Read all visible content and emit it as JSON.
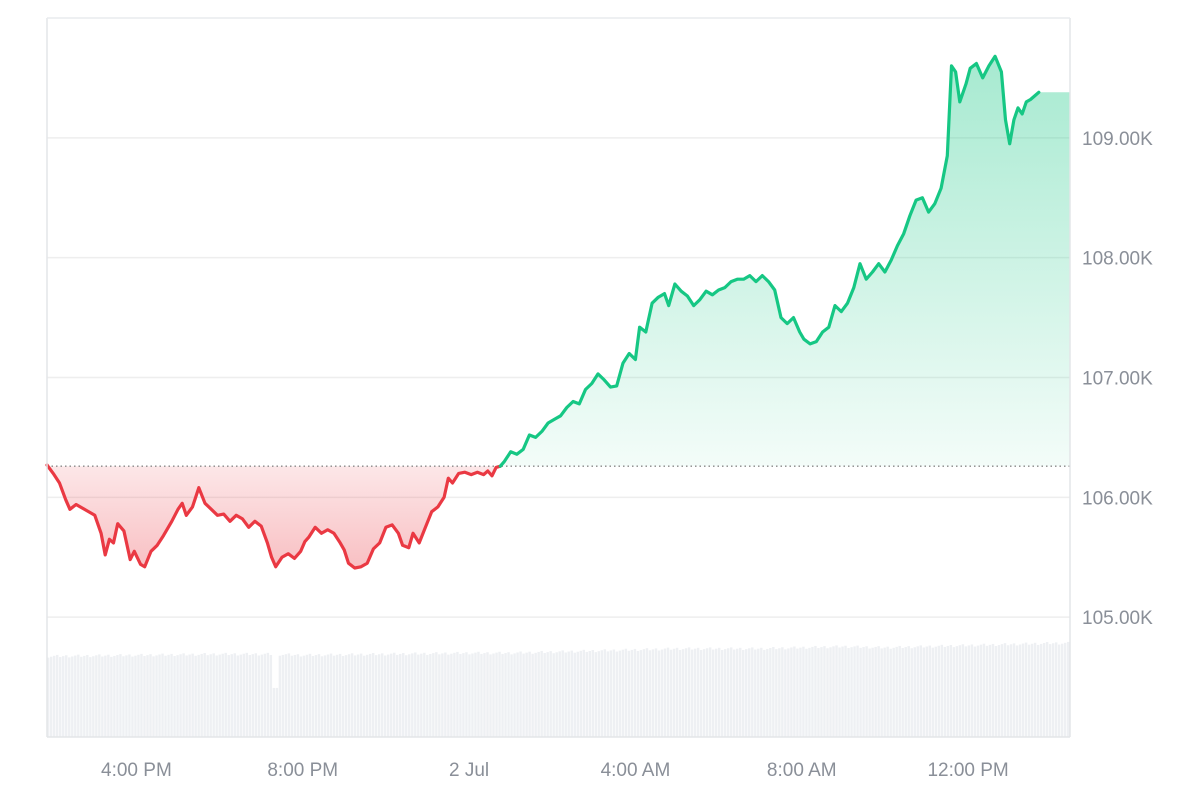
{
  "chart_data": {
    "type": "area",
    "title": "",
    "xlabel": "",
    "ylabel": "",
    "baseline": 106.26,
    "ylim": [
      104.0,
      110.0
    ],
    "y_ticks": [
      {
        "value": 105.0,
        "label": "105.00K"
      },
      {
        "value": 106.0,
        "label": "106.00K"
      },
      {
        "value": 107.0,
        "label": "107.00K"
      },
      {
        "value": 108.0,
        "label": "108.00K"
      },
      {
        "value": 109.0,
        "label": "109.00K"
      }
    ],
    "x_ticks": [
      {
        "hour": 16,
        "label": "4:00 PM"
      },
      {
        "hour": 20,
        "label": "8:00 PM"
      },
      {
        "hour": 24,
        "label": "2 Jul"
      },
      {
        "hour": 28,
        "label": "4:00 AM"
      },
      {
        "hour": 32,
        "label": "8:00 AM"
      },
      {
        "hour": 36,
        "label": "12:00 PM"
      }
    ],
    "xlim_hours": [
      13.85,
      38.45
    ],
    "grid": "horizontal",
    "colors": {
      "up_line": "#16c784",
      "down_line": "#ea3943",
      "up_fill": "#16c784",
      "down_fill": "#ea3943",
      "volume": "#eef0f3",
      "grid": "#eeeeee",
      "baseline": "#888888"
    },
    "series": [
      {
        "values": [
          [
            13.85,
            106.27
          ],
          [
            14.0,
            106.2
          ],
          [
            14.15,
            106.12
          ],
          [
            14.3,
            105.98
          ],
          [
            14.4,
            105.9
          ],
          [
            14.55,
            105.94
          ],
          [
            14.75,
            105.9
          ],
          [
            15.0,
            105.85
          ],
          [
            15.15,
            105.7
          ],
          [
            15.25,
            105.52
          ],
          [
            15.35,
            105.65
          ],
          [
            15.45,
            105.62
          ],
          [
            15.55,
            105.78
          ],
          [
            15.7,
            105.72
          ],
          [
            15.85,
            105.48
          ],
          [
            15.95,
            105.55
          ],
          [
            16.1,
            105.44
          ],
          [
            16.2,
            105.42
          ],
          [
            16.35,
            105.55
          ],
          [
            16.5,
            105.6
          ],
          [
            16.65,
            105.68
          ],
          [
            16.85,
            105.8
          ],
          [
            17.0,
            105.9
          ],
          [
            17.1,
            105.95
          ],
          [
            17.2,
            105.85
          ],
          [
            17.35,
            105.92
          ],
          [
            17.5,
            106.08
          ],
          [
            17.65,
            105.95
          ],
          [
            17.8,
            105.9
          ],
          [
            17.95,
            105.85
          ],
          [
            18.1,
            105.86
          ],
          [
            18.25,
            105.8
          ],
          [
            18.4,
            105.85
          ],
          [
            18.55,
            105.82
          ],
          [
            18.7,
            105.75
          ],
          [
            18.85,
            105.8
          ],
          [
            19.0,
            105.76
          ],
          [
            19.15,
            105.62
          ],
          [
            19.25,
            105.5
          ],
          [
            19.35,
            105.42
          ],
          [
            19.5,
            105.5
          ],
          [
            19.65,
            105.53
          ],
          [
            19.8,
            105.49
          ],
          [
            19.95,
            105.55
          ],
          [
            20.05,
            105.63
          ],
          [
            20.15,
            105.67
          ],
          [
            20.3,
            105.75
          ],
          [
            20.45,
            105.7
          ],
          [
            20.6,
            105.73
          ],
          [
            20.75,
            105.7
          ],
          [
            20.9,
            105.62
          ],
          [
            21.0,
            105.56
          ],
          [
            21.1,
            105.45
          ],
          [
            21.25,
            105.41
          ],
          [
            21.4,
            105.42
          ],
          [
            21.55,
            105.45
          ],
          [
            21.7,
            105.57
          ],
          [
            21.85,
            105.62
          ],
          [
            22.0,
            105.75
          ],
          [
            22.15,
            105.77
          ],
          [
            22.3,
            105.7
          ],
          [
            22.4,
            105.6
          ],
          [
            22.55,
            105.58
          ],
          [
            22.65,
            105.7
          ],
          [
            22.8,
            105.62
          ],
          [
            22.95,
            105.75
          ],
          [
            23.1,
            105.88
          ],
          [
            23.25,
            105.92
          ],
          [
            23.4,
            106.0
          ],
          [
            23.5,
            106.16
          ],
          [
            23.6,
            106.12
          ],
          [
            23.75,
            106.2
          ],
          [
            23.9,
            106.21
          ],
          [
            24.05,
            106.19
          ],
          [
            24.2,
            106.21
          ],
          [
            24.35,
            106.19
          ],
          [
            24.45,
            106.22
          ],
          [
            24.55,
            106.18
          ],
          [
            24.65,
            106.25
          ],
          [
            24.75,
            106.26
          ]
        ]
      },
      {
        "values": [
          [
            24.75,
            106.26
          ],
          [
            24.85,
            106.3
          ],
          [
            25.0,
            106.38
          ],
          [
            25.15,
            106.36
          ],
          [
            25.3,
            106.4
          ],
          [
            25.45,
            106.52
          ],
          [
            25.6,
            106.5
          ],
          [
            25.75,
            106.55
          ],
          [
            25.9,
            106.62
          ],
          [
            26.05,
            106.65
          ],
          [
            26.2,
            106.68
          ],
          [
            26.35,
            106.75
          ],
          [
            26.5,
            106.8
          ],
          [
            26.65,
            106.78
          ],
          [
            26.8,
            106.9
          ],
          [
            26.95,
            106.95
          ],
          [
            27.1,
            107.03
          ],
          [
            27.25,
            106.98
          ],
          [
            27.4,
            106.92
          ],
          [
            27.55,
            106.93
          ],
          [
            27.7,
            107.12
          ],
          [
            27.85,
            107.2
          ],
          [
            28.0,
            107.15
          ],
          [
            28.1,
            107.42
          ],
          [
            28.25,
            107.38
          ],
          [
            28.4,
            107.62
          ],
          [
            28.55,
            107.67
          ],
          [
            28.7,
            107.7
          ],
          [
            28.8,
            107.6
          ],
          [
            28.95,
            107.78
          ],
          [
            29.1,
            107.72
          ],
          [
            29.25,
            107.68
          ],
          [
            29.4,
            107.6
          ],
          [
            29.55,
            107.65
          ],
          [
            29.7,
            107.72
          ],
          [
            29.85,
            107.69
          ],
          [
            30.0,
            107.73
          ],
          [
            30.15,
            107.75
          ],
          [
            30.3,
            107.8
          ],
          [
            30.45,
            107.82
          ],
          [
            30.6,
            107.82
          ],
          [
            30.75,
            107.85
          ],
          [
            30.9,
            107.8
          ],
          [
            31.05,
            107.85
          ],
          [
            31.2,
            107.8
          ],
          [
            31.35,
            107.73
          ],
          [
            31.5,
            107.5
          ],
          [
            31.65,
            107.45
          ],
          [
            31.8,
            107.5
          ],
          [
            31.95,
            107.38
          ],
          [
            32.05,
            107.32
          ],
          [
            32.2,
            107.28
          ],
          [
            32.35,
            107.3
          ],
          [
            32.5,
            107.38
          ],
          [
            32.65,
            107.42
          ],
          [
            32.8,
            107.6
          ],
          [
            32.95,
            107.55
          ],
          [
            33.1,
            107.62
          ],
          [
            33.25,
            107.75
          ],
          [
            33.4,
            107.95
          ],
          [
            33.55,
            107.82
          ],
          [
            33.7,
            107.88
          ],
          [
            33.85,
            107.95
          ],
          [
            34.0,
            107.88
          ],
          [
            34.15,
            107.98
          ],
          [
            34.3,
            108.1
          ],
          [
            34.45,
            108.2
          ],
          [
            34.6,
            108.35
          ],
          [
            34.75,
            108.48
          ],
          [
            34.9,
            108.5
          ],
          [
            35.05,
            108.38
          ],
          [
            35.2,
            108.45
          ],
          [
            35.35,
            108.58
          ],
          [
            35.5,
            108.85
          ],
          [
            35.6,
            109.6
          ],
          [
            35.7,
            109.55
          ],
          [
            35.8,
            109.3
          ],
          [
            35.95,
            109.45
          ],
          [
            36.05,
            109.58
          ],
          [
            36.2,
            109.62
          ],
          [
            36.35,
            109.5
          ],
          [
            36.5,
            109.6
          ],
          [
            36.65,
            109.68
          ],
          [
            36.8,
            109.55
          ],
          [
            36.9,
            109.15
          ],
          [
            37.0,
            108.95
          ],
          [
            37.1,
            109.15
          ],
          [
            37.2,
            109.25
          ],
          [
            37.3,
            109.2
          ],
          [
            37.4,
            109.3
          ],
          [
            37.5,
            109.32
          ],
          [
            37.6,
            109.35
          ],
          [
            37.7,
            109.38
          ]
        ]
      }
    ],
    "volume": {
      "gap_hour": 19.35,
      "levels": [
        [
          13.85,
          0.74
        ],
        [
          16.0,
          0.75
        ],
        [
          18.0,
          0.76
        ],
        [
          19.3,
          0.76
        ],
        [
          20.0,
          0.75
        ],
        [
          22.0,
          0.76
        ],
        [
          24.0,
          0.77
        ],
        [
          25.0,
          0.77
        ],
        [
          26.0,
          0.78
        ],
        [
          27.0,
          0.79
        ],
        [
          28.0,
          0.8
        ],
        [
          29.0,
          0.81
        ],
        [
          30.0,
          0.81
        ],
        [
          31.0,
          0.81
        ],
        [
          32.0,
          0.82
        ],
        [
          33.0,
          0.83
        ],
        [
          34.0,
          0.82
        ],
        [
          35.0,
          0.83
        ],
        [
          36.0,
          0.84
        ],
        [
          37.0,
          0.85
        ],
        [
          38.0,
          0.86
        ],
        [
          38.45,
          0.86
        ]
      ]
    }
  }
}
